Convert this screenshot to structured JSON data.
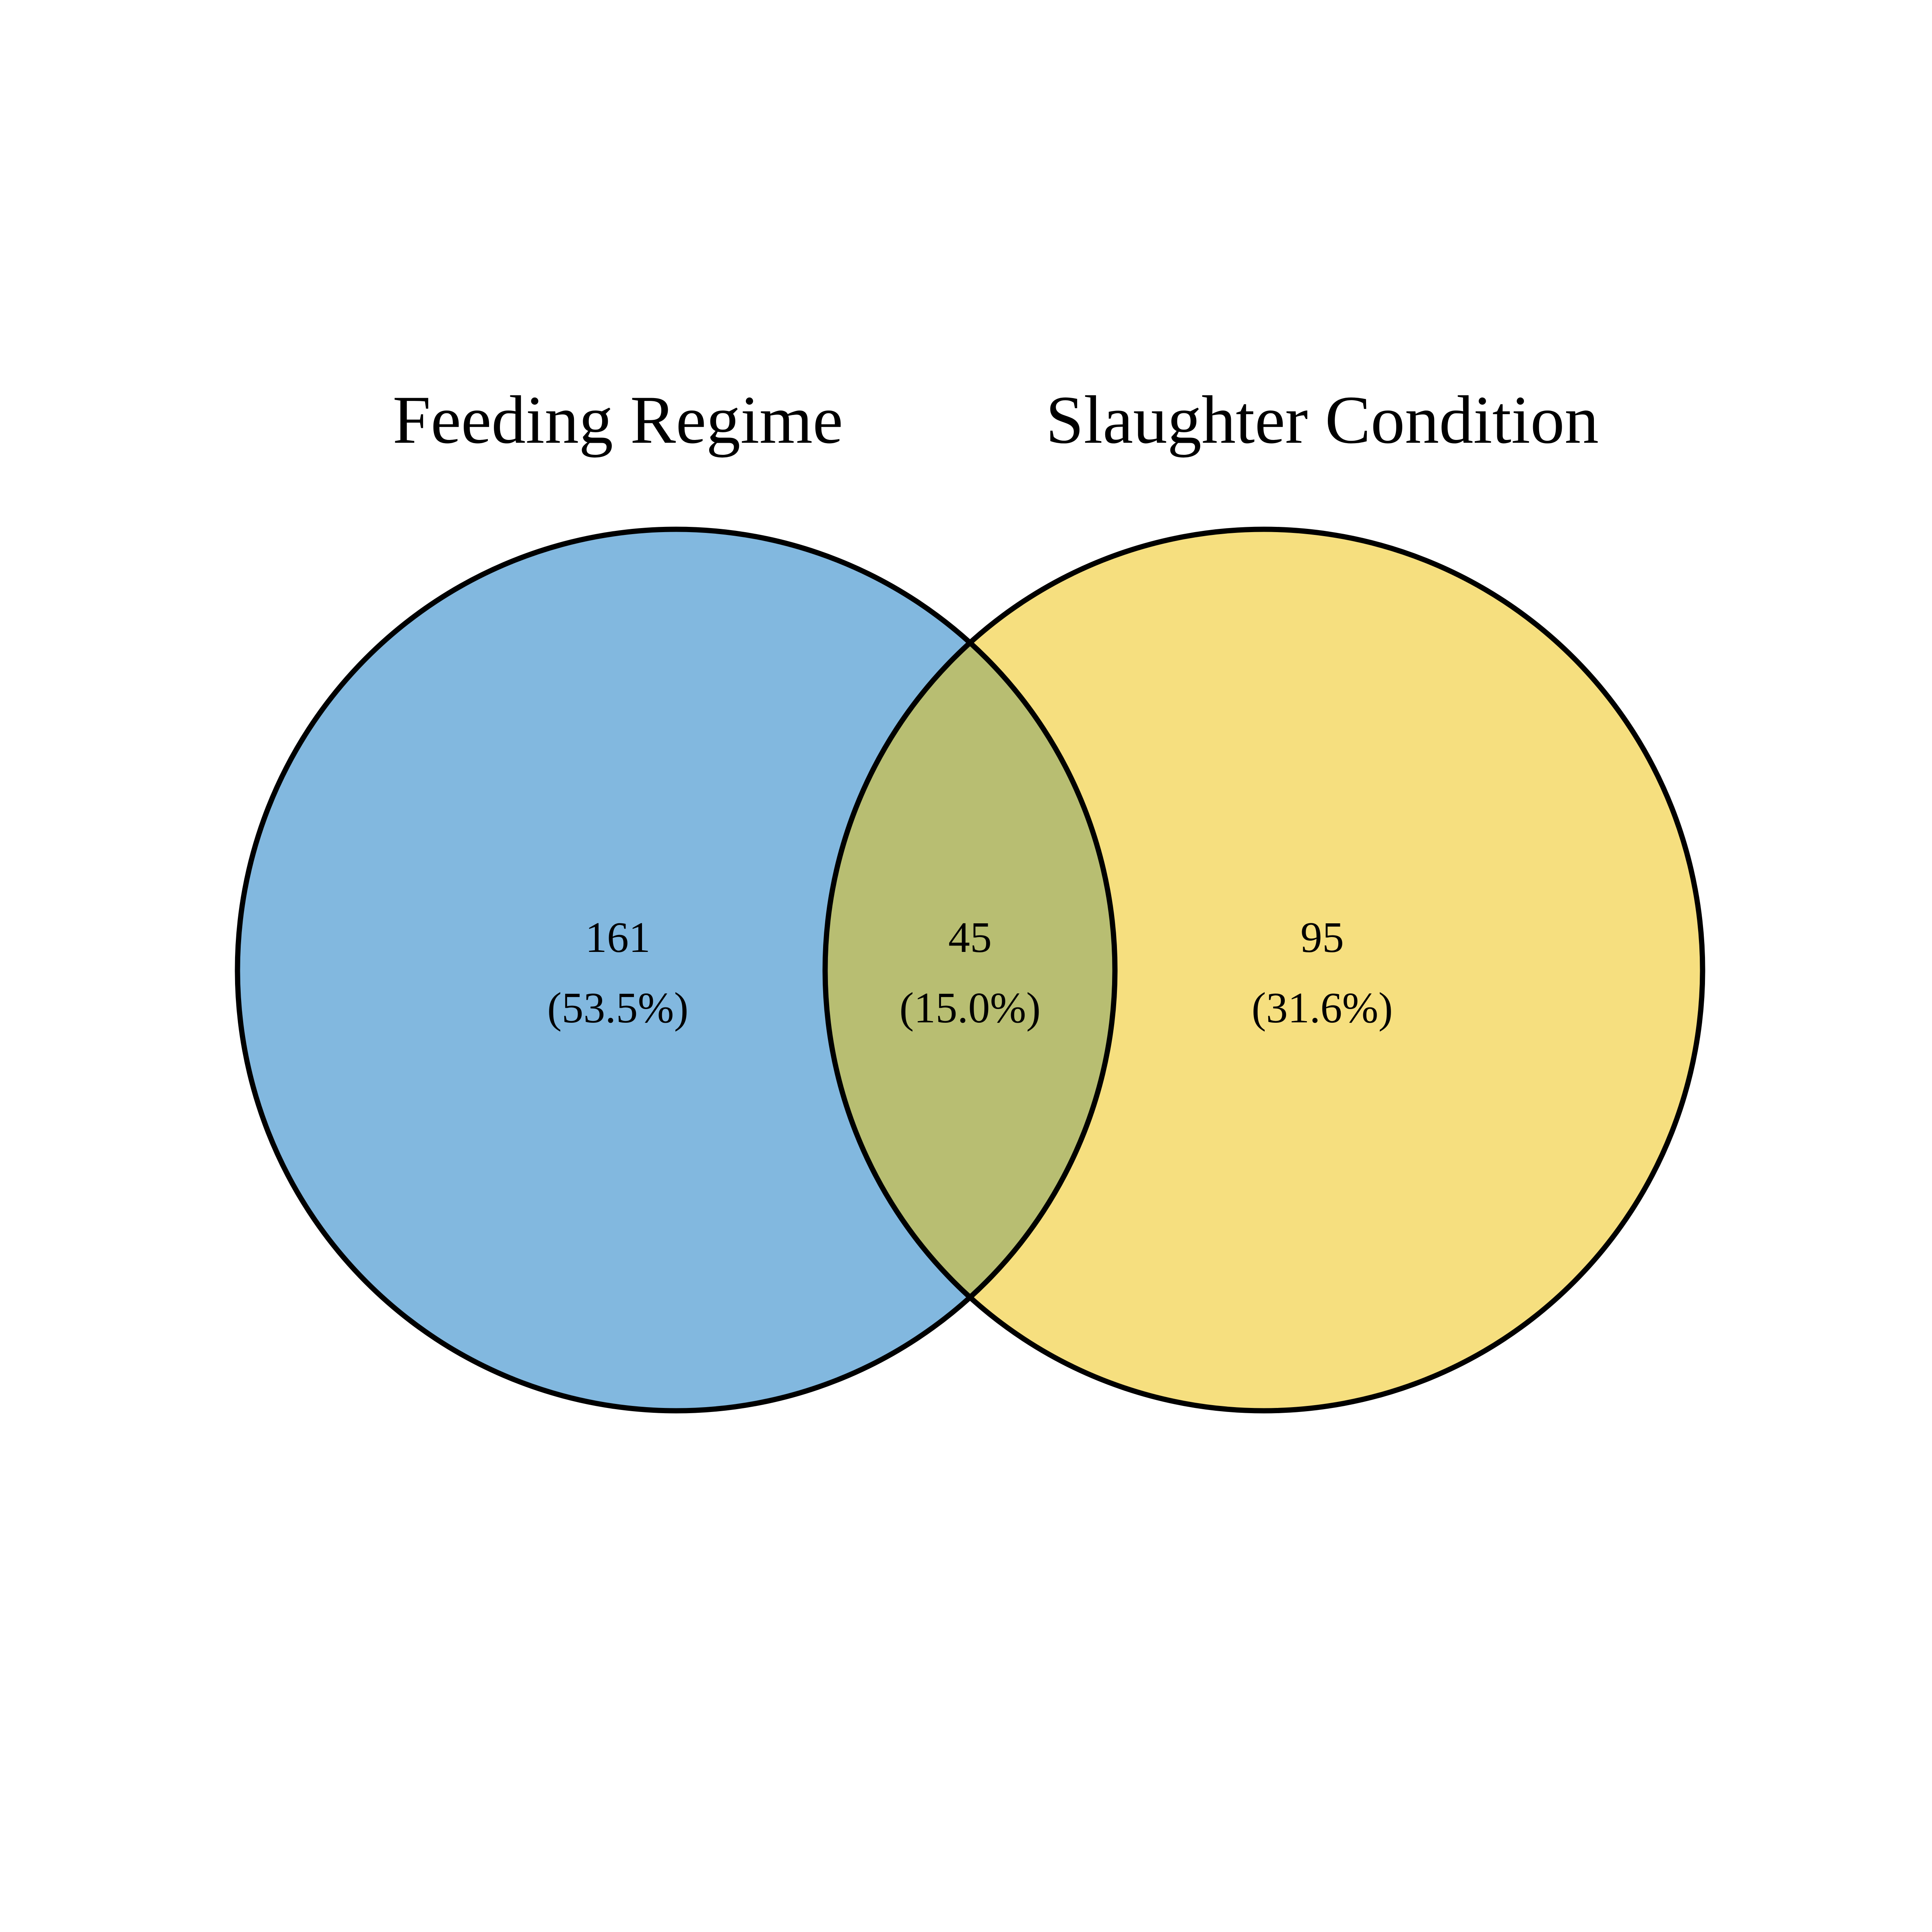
{
  "sets": [
    {
      "name": "Feeding Regime",
      "color": "#82B8DF"
    },
    {
      "name": "Slaughter Condition",
      "color": "#F6DF7F"
    }
  ],
  "overlap_color": "#B8BE72",
  "outline_color": "#000000",
  "regions": {
    "left_only": {
      "count": "161",
      "percent": "(53.5%)"
    },
    "both": {
      "count": "45",
      "percent": "(15.0%)"
    },
    "right_only": {
      "count": "95",
      "percent": "(31.6%)"
    }
  }
}
